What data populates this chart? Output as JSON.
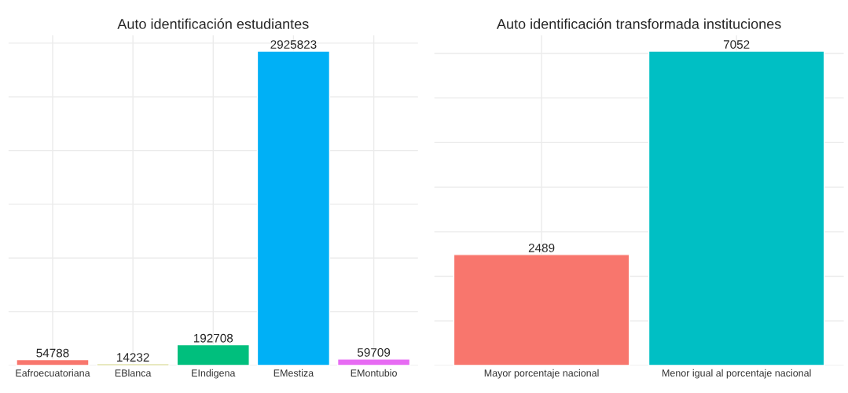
{
  "chart_data": [
    {
      "type": "bar",
      "title": "Auto identificación estudiantes",
      "categories": [
        "Eafroecuatoriana",
        "EBlanca",
        "EIndigena",
        "EMestiza",
        "EMontubio"
      ],
      "values": [
        54788,
        14232,
        192708,
        2925823,
        59709
      ],
      "colors": [
        "#f8766d",
        "#a3a500",
        "#00bf7d",
        "#00b0f6",
        "#e76bf3"
      ],
      "data_labels": true,
      "grid": true,
      "tick_labels": "x"
    },
    {
      "type": "bar",
      "title": "Auto identificación transformada instituciones",
      "categories": [
        "Mayor porcentaje nacional",
        "Menor igual al porcentaje nacional"
      ],
      "values": [
        2489,
        7052
      ],
      "colors": [
        "#f8766d",
        "#00bfc4"
      ],
      "data_labels": true,
      "grid": true,
      "tick_labels": "x"
    }
  ]
}
